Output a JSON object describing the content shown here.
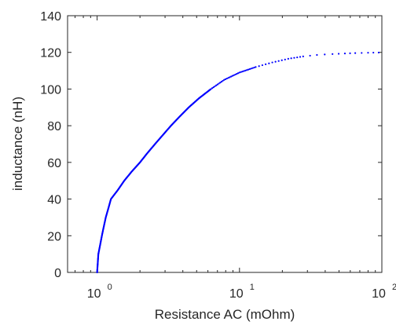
{
  "chart_data": {
    "type": "scatter",
    "xlabel": "Resistance AC (mOhm)",
    "ylabel": "inductance (nH)",
    "xscale": "log",
    "xlim": [
      0.62,
      100
    ],
    "ylim": [
      0,
      140
    ],
    "x_ticks": [
      {
        "value": 1,
        "base": "10",
        "exp": "0"
      },
      {
        "value": 10,
        "base": "10",
        "exp": "1"
      },
      {
        "value": 100,
        "base": "10",
        "exp": "2"
      }
    ],
    "y_ticks": [
      "0",
      "20",
      "40",
      "60",
      "80",
      "100",
      "120",
      "140"
    ],
    "grid": false,
    "marker_color": "#0000ff",
    "series": [
      {
        "points": [
          [
            1.0,
            0
          ],
          [
            1.01,
            5
          ],
          [
            1.02,
            10
          ],
          [
            1.05,
            15
          ],
          [
            1.08,
            20
          ],
          [
            1.1,
            23
          ],
          [
            1.15,
            30
          ],
          [
            1.2,
            35
          ],
          [
            1.25,
            40
          ],
          [
            1.4,
            45
          ],
          [
            1.55,
            50
          ],
          [
            1.75,
            55
          ],
          [
            2.0,
            60
          ],
          [
            2.25,
            65
          ],
          [
            2.55,
            70
          ],
          [
            2.9,
            75
          ],
          [
            3.3,
            80
          ],
          [
            3.8,
            85
          ],
          [
            4.4,
            90
          ],
          [
            5.2,
            95
          ],
          [
            6.3,
            100
          ],
          [
            7.8,
            105
          ],
          [
            10.0,
            109
          ],
          [
            13.0,
            112
          ],
          [
            17.0,
            114.5
          ],
          [
            22.0,
            116.5
          ],
          [
            28.0,
            117.8
          ],
          [
            35.0,
            118.6
          ],
          [
            45.0,
            119.1
          ],
          [
            55.0,
            119.4
          ],
          [
            65.0,
            119.6
          ],
          [
            80.0,
            119.8
          ],
          [
            95.0,
            119.9
          ]
        ]
      }
    ]
  }
}
